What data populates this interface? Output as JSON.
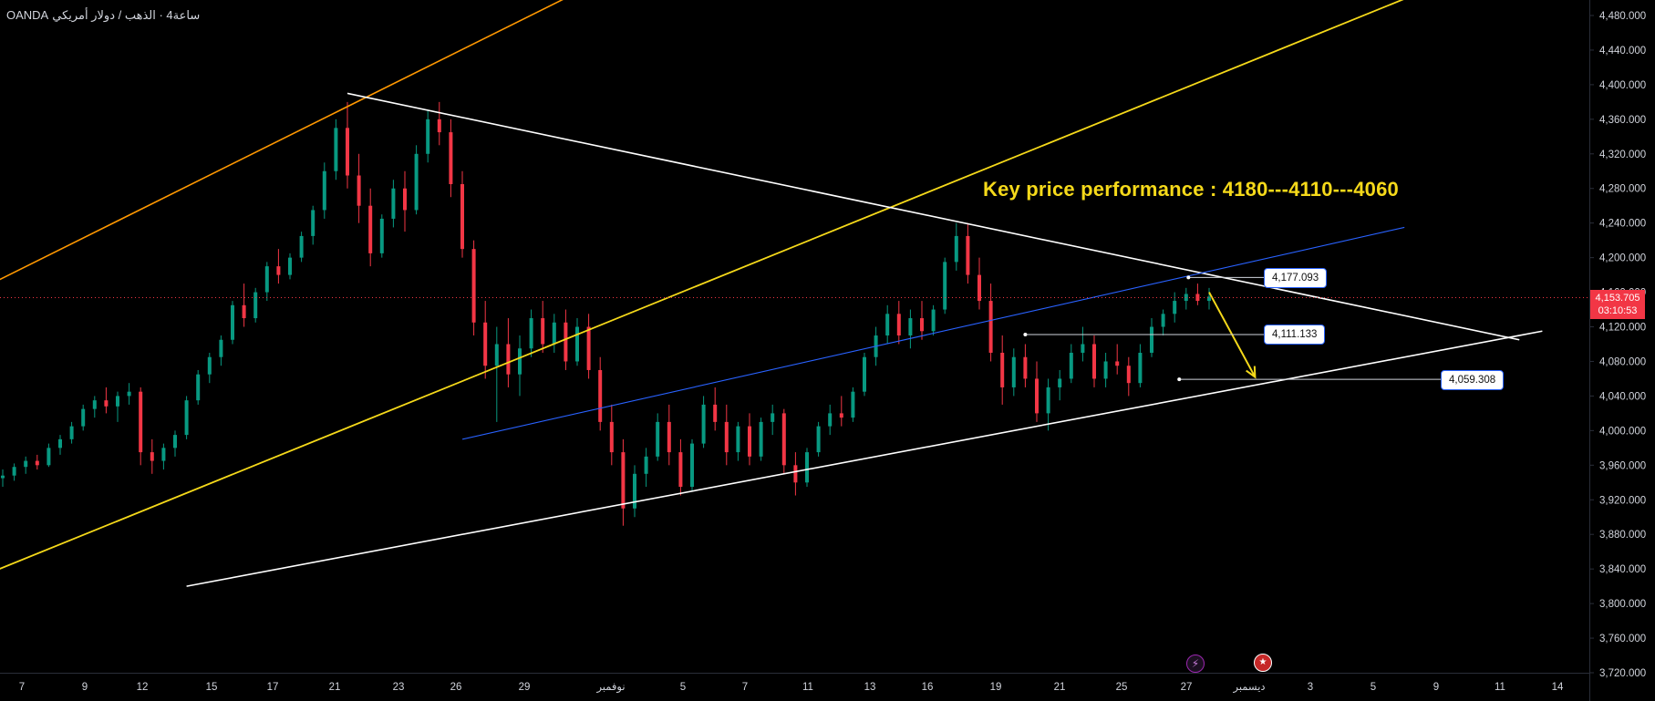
{
  "header": {
    "symbol_title": "ساعة4 · الذهب / دولار أمريكي",
    "broker": "OANDA"
  },
  "annotation": {
    "key_text": "Key price performance : 4180---4110---4060"
  },
  "price_labels": {
    "upper": "4,177.093",
    "middle": "4,111.133",
    "lower": "4,059.308"
  },
  "current_price": {
    "value": "4,153.705",
    "countdown": "03:10:53",
    "color": "#f23645"
  },
  "events": {
    "event_1_icon": "lightning-icon",
    "event_2_icon": "us-flag-icon"
  },
  "colors": {
    "bull": "#089981",
    "bear": "#f23645",
    "orange_line": "#ff9800",
    "yellow_line": "#f5d91a",
    "blue_line": "#2962ff",
    "white_line": "#ffffff",
    "axis_text": "#d1d4dc"
  },
  "chart_data": {
    "type": "candlestick",
    "y_axis": {
      "min": 3720,
      "max": 4480,
      "ticks": [
        "4,480.000",
        "4,440.000",
        "4,400.000",
        "4,360.000",
        "4,320.000",
        "4,280.000",
        "4,240.000",
        "4,200.000",
        "4,160.000",
        "4,120.000",
        "4,080.000",
        "4,040.000",
        "4,000.000",
        "3,960.000",
        "3,920.000",
        "3,880.000",
        "3,840.000",
        "3,800.000",
        "3,760.000",
        "3,720.000"
      ]
    },
    "x_axis": {
      "ticks": [
        "7",
        "9",
        "12",
        "15",
        "17",
        "21",
        "23",
        "26",
        "29",
        "نوفمبر",
        "5",
        "7",
        "11",
        "13",
        "16",
        "19",
        "21",
        "25",
        "27",
        "ديسمبر",
        "3",
        "5",
        "9",
        "11",
        "14"
      ]
    },
    "ohlc": [
      [
        0,
        3945,
        3955,
        3935,
        3948
      ],
      [
        0.5,
        3948,
        3962,
        3942,
        3958
      ],
      [
        1,
        3958,
        3970,
        3950,
        3965
      ],
      [
        1.5,
        3965,
        3972,
        3955,
        3960
      ],
      [
        2,
        3960,
        3985,
        3958,
        3980
      ],
      [
        2.5,
        3980,
        3995,
        3972,
        3990
      ],
      [
        3,
        3990,
        4010,
        3985,
        4005
      ],
      [
        3.5,
        4005,
        4030,
        4000,
        4025
      ],
      [
        4,
        4025,
        4040,
        4015,
        4035
      ],
      [
        4.5,
        4035,
        4050,
        4020,
        4028
      ],
      [
        5,
        4028,
        4045,
        4010,
        4040
      ],
      [
        5.5,
        4040,
        4055,
        4030,
        4045
      ],
      [
        6,
        4045,
        4050,
        3960,
        3975
      ],
      [
        6.5,
        3975,
        3990,
        3950,
        3965
      ],
      [
        7,
        3965,
        3985,
        3955,
        3980
      ],
      [
        7.5,
        3980,
        4000,
        3970,
        3995
      ],
      [
        8,
        3995,
        4040,
        3990,
        4035
      ],
      [
        8.5,
        4035,
        4070,
        4030,
        4065
      ],
      [
        9,
        4065,
        4090,
        4055,
        4085
      ],
      [
        9.5,
        4085,
        4110,
        4075,
        4105
      ],
      [
        10,
        4105,
        4150,
        4100,
        4145
      ],
      [
        10.5,
        4145,
        4170,
        4120,
        4130
      ],
      [
        11,
        4130,
        4165,
        4125,
        4160
      ],
      [
        11.5,
        4160,
        4195,
        4150,
        4190
      ],
      [
        12,
        4190,
        4210,
        4170,
        4180
      ],
      [
        12.5,
        4180,
        4205,
        4175,
        4200
      ],
      [
        13,
        4200,
        4230,
        4195,
        4225
      ],
      [
        13.5,
        4225,
        4260,
        4215,
        4255
      ],
      [
        14,
        4255,
        4310,
        4245,
        4300
      ],
      [
        14.5,
        4300,
        4360,
        4290,
        4350
      ],
      [
        15,
        4350,
        4380,
        4280,
        4295
      ],
      [
        15.5,
        4295,
        4320,
        4240,
        4260
      ],
      [
        16,
        4260,
        4280,
        4190,
        4205
      ],
      [
        16.5,
        4205,
        4250,
        4200,
        4245
      ],
      [
        17,
        4245,
        4290,
        4235,
        4280
      ],
      [
        17.5,
        4280,
        4300,
        4230,
        4255
      ],
      [
        18,
        4255,
        4330,
        4250,
        4320
      ],
      [
        18.5,
        4320,
        4370,
        4310,
        4360
      ],
      [
        19,
        4360,
        4380,
        4330,
        4345
      ],
      [
        19.5,
        4345,
        4360,
        4270,
        4285
      ],
      [
        20,
        4285,
        4300,
        4200,
        4210
      ],
      [
        20.5,
        4210,
        4220,
        4110,
        4125
      ],
      [
        21,
        4125,
        4150,
        4060,
        4075
      ],
      [
        21.5,
        4075,
        4120,
        4010,
        4100
      ],
      [
        22,
        4100,
        4130,
        4050,
        4065
      ],
      [
        22.5,
        4065,
        4110,
        4040,
        4095
      ],
      [
        23,
        4095,
        4140,
        4085,
        4130
      ],
      [
        23.5,
        4130,
        4150,
        4090,
        4100
      ],
      [
        24,
        4100,
        4135,
        4090,
        4125
      ],
      [
        24.5,
        4125,
        4140,
        4070,
        4080
      ],
      [
        25,
        4080,
        4130,
        4075,
        4120
      ],
      [
        25.5,
        4120,
        4135,
        4060,
        4070
      ],
      [
        26,
        4070,
        4085,
        4000,
        4010
      ],
      [
        26.5,
        4010,
        4030,
        3960,
        3975
      ],
      [
        27,
        3975,
        3990,
        3890,
        3910
      ],
      [
        27.5,
        3910,
        3960,
        3900,
        3950
      ],
      [
        28,
        3950,
        3980,
        3935,
        3970
      ],
      [
        28.5,
        3970,
        4020,
        3965,
        4010
      ],
      [
        29,
        4010,
        4030,
        3960,
        3975
      ],
      [
        29.5,
        3975,
        3990,
        3925,
        3935
      ],
      [
        30,
        3935,
        3990,
        3930,
        3985
      ],
      [
        30.5,
        3985,
        4040,
        3980,
        4030
      ],
      [
        31,
        4030,
        4050,
        4000,
        4010
      ],
      [
        31.5,
        4010,
        4030,
        3960,
        3975
      ],
      [
        32,
        3975,
        4010,
        3965,
        4005
      ],
      [
        32.5,
        4005,
        4020,
        3960,
        3970
      ],
      [
        33,
        3970,
        4015,
        3965,
        4010
      ],
      [
        33.5,
        4010,
        4030,
        3995,
        4020
      ],
      [
        34,
        4020,
        4025,
        3950,
        3960
      ],
      [
        34.5,
        3960,
        3975,
        3925,
        3940
      ],
      [
        35,
        3940,
        3980,
        3935,
        3975
      ],
      [
        35.5,
        3975,
        4010,
        3970,
        4005
      ],
      [
        36,
        4005,
        4030,
        3995,
        4020
      ],
      [
        36.5,
        4020,
        4040,
        4005,
        4015
      ],
      [
        37,
        4015,
        4050,
        4010,
        4045
      ],
      [
        37.5,
        4045,
        4090,
        4040,
        4085
      ],
      [
        38,
        4085,
        4120,
        4075,
        4110
      ],
      [
        38.5,
        4110,
        4145,
        4100,
        4135
      ],
      [
        39,
        4135,
        4150,
        4100,
        4110
      ],
      [
        39.5,
        4110,
        4140,
        4095,
        4130
      ],
      [
        40,
        4130,
        4150,
        4105,
        4115
      ],
      [
        40.5,
        4115,
        4145,
        4110,
        4140
      ],
      [
        41,
        4140,
        4200,
        4135,
        4195
      ],
      [
        41.5,
        4195,
        4240,
        4185,
        4225
      ],
      [
        42,
        4225,
        4240,
        4170,
        4180
      ],
      [
        42.5,
        4180,
        4200,
        4140,
        4150
      ],
      [
        43,
        4150,
        4170,
        4080,
        4090
      ],
      [
        43.5,
        4090,
        4110,
        4030,
        4050
      ],
      [
        44,
        4050,
        4095,
        4040,
        4085
      ],
      [
        44.5,
        4085,
        4100,
        4050,
        4060
      ],
      [
        45,
        4060,
        4080,
        4010,
        4020
      ],
      [
        45.5,
        4020,
        4060,
        4000,
        4050
      ],
      [
        46,
        4050,
        4070,
        4035,
        4060
      ],
      [
        46.5,
        4060,
        4100,
        4055,
        4090
      ],
      [
        47,
        4090,
        4120,
        4080,
        4100
      ],
      [
        47.5,
        4100,
        4110,
        4050,
        4060
      ],
      [
        48,
        4060,
        4090,
        4050,
        4080
      ],
      [
        48.5,
        4080,
        4100,
        4065,
        4075
      ],
      [
        49,
        4075,
        4085,
        4040,
        4055
      ],
      [
        49.5,
        4055,
        4100,
        4050,
        4090
      ],
      [
        50,
        4090,
        4130,
        4085,
        4120
      ],
      [
        50.5,
        4120,
        4140,
        4110,
        4135
      ],
      [
        51,
        4135,
        4160,
        4125,
        4150
      ],
      [
        51.5,
        4150,
        4165,
        4140,
        4158
      ],
      [
        52,
        4158,
        4170,
        4145,
        4150
      ],
      [
        52.5,
        4150,
        4165,
        4140,
        4155
      ]
    ],
    "trendlines": [
      {
        "name": "orange-channel",
        "p1": [
          -2,
          4150
        ],
        "p2": [
          26,
          4520
        ]
      },
      {
        "name": "yellow-channel",
        "p1": [
          -2,
          3820
        ],
        "p2": [
          62,
          4510
        ]
      },
      {
        "name": "upper-resistance",
        "p1": [
          15,
          4390
        ],
        "p2": [
          66,
          4105
        ]
      },
      {
        "name": "lower-support",
        "p1": [
          8,
          3820
        ],
        "p2": [
          67,
          4115
        ]
      },
      {
        "name": "blue-mid",
        "p1": [
          20,
          3990
        ],
        "p2": [
          61,
          4235
        ]
      }
    ],
    "horizontal_levels": [
      4177.093,
      4111.133,
      4059.308
    ]
  }
}
